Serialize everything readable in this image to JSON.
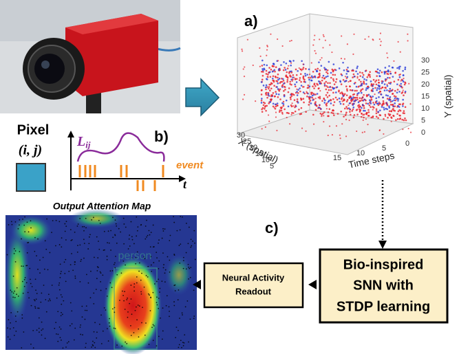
{
  "labels": {
    "a": "a)",
    "b": "b)",
    "c": "c)"
  },
  "pixel": {
    "title": "Pixel",
    "coord": "(i, j)"
  },
  "signal": {
    "name": "L",
    "subscript": "ij",
    "event": "event",
    "axis": "t"
  },
  "plot": {
    "x_label": "X (spatial)",
    "y_label": "Y (spatial)",
    "t_label": "Time steps",
    "x_ticks": [
      30,
      25,
      20,
      15,
      10,
      5
    ],
    "y_ticks": [
      0,
      5,
      10,
      15,
      20,
      25,
      30
    ],
    "t_ticks": [
      15,
      10,
      5,
      0
    ]
  },
  "output": {
    "title": "Output Attention Map",
    "detection": "person"
  },
  "readout": {
    "lines": [
      "Neural Activity",
      "Readout"
    ]
  },
  "snn": {
    "lines": [
      "Bio-inspired",
      "SNN with",
      "STDP learning"
    ]
  }
}
